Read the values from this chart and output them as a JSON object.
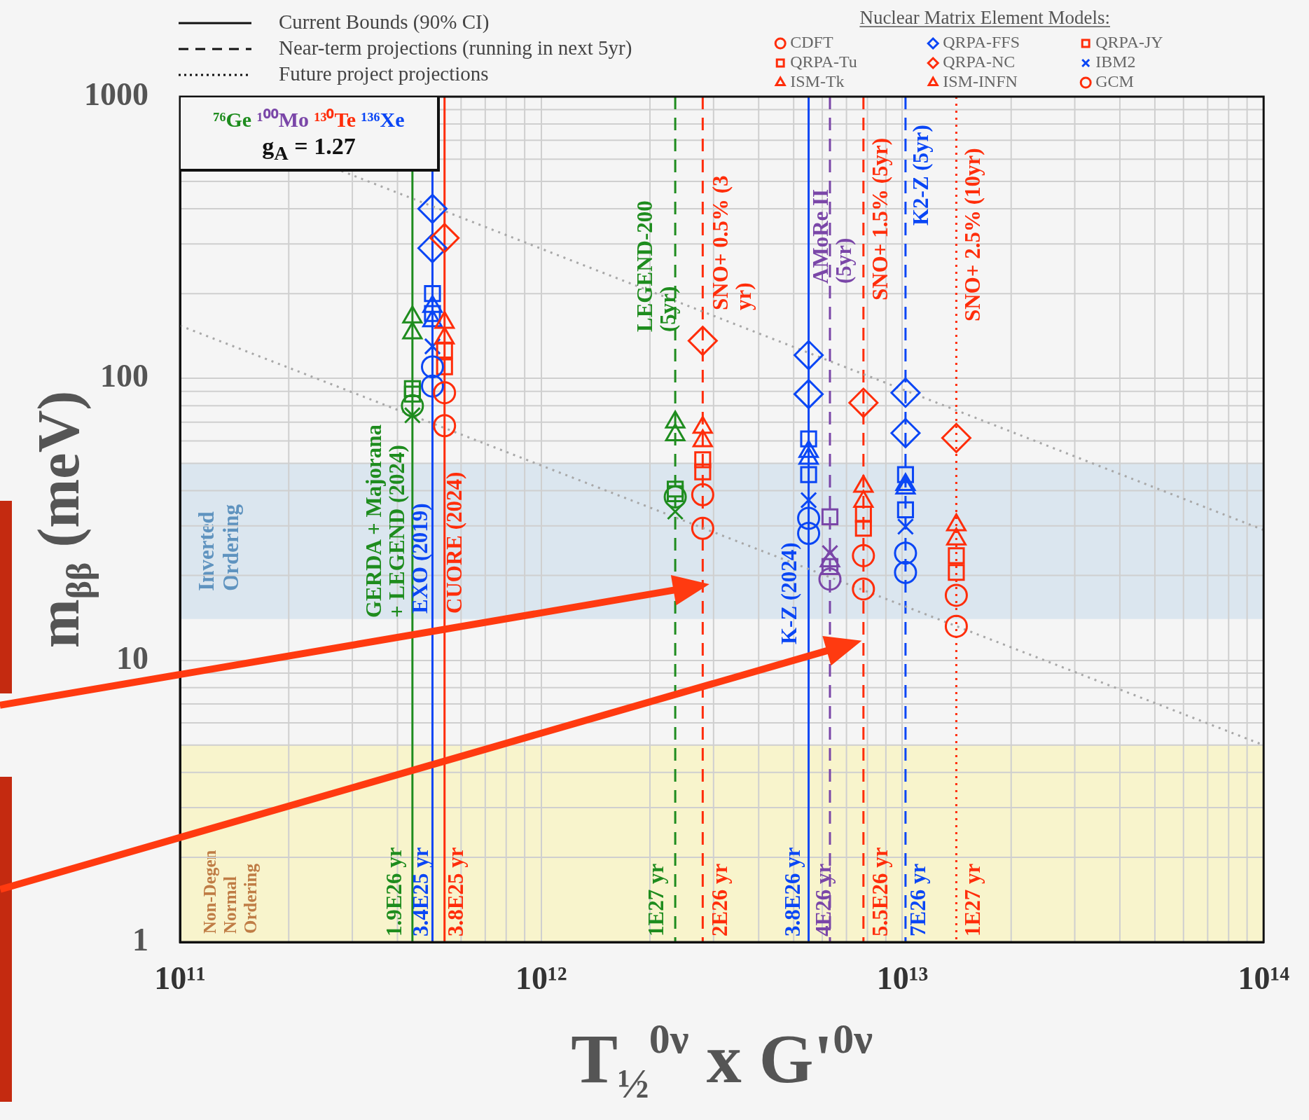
{
  "chart_data": {
    "type": "scatter",
    "xlabel": "T$_{½}$$^{0ν}$ x G'$^{0ν}$",
    "ylabel": "m$_{ββ}$ (meV)",
    "legend_title": "Nuclear Matrix Element Models:",
    "legend": "top right",
    "grid": true,
    "log": "xy",
    "xlim": [
      100000000000.0,
      100000000000000.0
    ],
    "xticks": [
      {
        "value": 100000000000.0,
        "label": "10¹¹"
      },
      {
        "value": 1000000000000.0,
        "label": "10¹²"
      },
      {
        "value": 10000000000000.0,
        "label": "10¹³"
      },
      {
        "value": 100000000000000.0,
        "label": "10¹⁴"
      }
    ],
    "ylim": [
      1,
      1000
    ],
    "yticks": [
      1,
      10,
      100,
      1000
    ],
    "x": [
      440000000000.0,
      500000000000.0,
      540000000000.0,
      2350000000000.0,
      2800000000000.0,
      5500000000000.0,
      6300000000000.0,
      7800000000000.0,
      10200000000000.0,
      14100000000000.0
    ],
    "series": [
      {
        "name": "CDFT",
        "marker": "circle",
        "values": [
          80,
          110,
          89,
          38,
          38.7,
          31.9,
          null,
          23.5,
          24,
          17
        ],
        "colors": [
          "#1e8c1e",
          "#0a46f5",
          "#ff2d0a",
          "#1e8c1e",
          "#ff2d0a",
          "#0a46f5",
          "#7a46a8",
          "#ff2d0a",
          "#0a46f5",
          "#ff2d0a"
        ]
      },
      {
        "name": "QRPA-Tu",
        "marker": "square",
        "values": [
          92,
          200,
          126,
          40.5,
          51.5,
          61,
          21.5,
          33,
          45.6,
          23.5
        ],
        "colors": [
          "#1e8c1e",
          "#0a46f5",
          "#ff2d0a",
          "#1e8c1e",
          "#ff2d0a",
          "#0a46f5",
          "#7a46a8",
          "#ff2d0a",
          "#0a46f5",
          "#ff2d0a"
        ]
      },
      {
        "name": "ISM-Tk",
        "marker": "triangle",
        "values": [
          165,
          180,
          158,
          70,
          67,
          55,
          null,
          41.4,
          40.8,
          30.2
        ],
        "colors": [
          "#1e8c1e",
          "#0a46f5",
          "#ff2d0a",
          "#1e8c1e",
          "#ff2d0a",
          "#0a46f5",
          "#7a46a8",
          "#ff2d0a",
          "#0a46f5",
          "#ff2d0a"
        ]
      },
      {
        "name": "QRPA-FFS",
        "marker": "diamond",
        "values": [
          null,
          400,
          null,
          null,
          null,
          121,
          null,
          null,
          89,
          null
        ],
        "colors": [
          "#1e8c1e",
          "#0a46f5",
          "#ff2d0a",
          "#1e8c1e",
          "#ff2d0a",
          "#0a46f5",
          "#7a46a8",
          "#ff2d0a",
          "#0a46f5",
          "#ff2d0a"
        ]
      },
      {
        "name": "QRPA-NC",
        "marker": "diamond",
        "values": [
          null,
          290,
          315,
          null,
          136,
          88,
          null,
          82,
          64,
          61.5
        ],
        "colors": [
          "#1e8c1e",
          "#0a46f5",
          "#ff2d0a",
          "#1e8c1e",
          "#ff2d0a",
          "#0a46f5",
          "#7a46a8",
          "#ff2d0a",
          "#0a46f5",
          "#ff2d0a"
        ]
      },
      {
        "name": "ISM-INFN",
        "marker": "triangle",
        "values": [
          145,
          160,
          139,
          63,
          60,
          52,
          22.5,
          36.6,
          42,
          26.9
        ],
        "colors": [
          "#1e8c1e",
          "#0a46f5",
          "#ff2d0a",
          "#1e8c1e",
          "#ff2d0a",
          "#0a46f5",
          "#7a46a8",
          "#ff2d0a",
          "#0a46f5",
          "#ff2d0a"
        ]
      },
      {
        "name": "QRPA-JY",
        "marker": "square",
        "values": [
          88,
          170,
          110,
          39,
          46.6,
          45.6,
          32.3,
          29.4,
          34.2,
          20.5
        ],
        "colors": [
          "#1e8c1e",
          "#0a46f5",
          "#ff2d0a",
          "#1e8c1e",
          "#ff2d0a",
          "#0a46f5",
          "#7a46a8",
          "#ff2d0a",
          "#0a46f5",
          "#ff2d0a"
        ]
      },
      {
        "name": "IBM2",
        "marker": "cross",
        "values": [
          74,
          130,
          null,
          33.7,
          null,
          37,
          24,
          null,
          29.8,
          null
        ],
        "colors": [
          "#1e8c1e",
          "#0a46f5",
          "#ff2d0a",
          "#1e8c1e",
          "#ff2d0a",
          "#0a46f5",
          "#7a46a8",
          "#ff2d0a",
          "#0a46f5",
          "#ff2d0a"
        ]
      },
      {
        "name": "GCM",
        "marker": "circle",
        "values": [
          null,
          94,
          68,
          null,
          29.4,
          28.2,
          19.4,
          17.9,
          20.5,
          13.2
        ],
        "colors": [
          "#1e8c1e",
          "#0a46f5",
          "#ff2d0a",
          "#1e8c1e",
          "#ff2d0a",
          "#0a46f5",
          "#7a46a8",
          "#ff2d0a",
          "#0a46f5",
          "#ff2d0a"
        ]
      },
      {
        "type": "line",
        "x": [
          280000000000.0,
          100000000000000.0
        ],
        "values": [
          545,
          29
        ],
        "color": "#a8a8a8",
        "line_style": "dotted",
        "marker": "none"
      },
      {
        "type": "line",
        "x": [
          100000000000.0,
          100000000000000.0
        ],
        "values": [
          154,
          5
        ],
        "color": "#a8a8a8",
        "line_style": "dotted",
        "marker": "none"
      }
    ],
    "ref_lines": [
      {
        "axis": "x",
        "value": 440000000000.0,
        "label": "1.9E26 yr",
        "color": "#1e8c1e",
        "line_style": "solid"
      },
      {
        "axis": "x",
        "value": 500000000000.0,
        "label": "3.4E25 yr",
        "color": "#0a46f5",
        "line_style": "solid"
      },
      {
        "axis": "x",
        "value": 540000000000.0,
        "label": "3.8E25 yr",
        "color": "#ff2d0a",
        "line_style": "solid"
      },
      {
        "axis": "x",
        "value": 2350000000000.0,
        "label": "1E27 yr",
        "color": "#1e8c1e",
        "line_style": "dashed"
      },
      {
        "axis": "x",
        "value": 2800000000000.0,
        "label": "2E26 yr",
        "color": "#ff2d0a",
        "line_style": "dashed"
      },
      {
        "axis": "x",
        "value": 5500000000000.0,
        "label": "3.8E26 yr",
        "color": "#0a46f5",
        "line_style": "solid"
      },
      {
        "axis": "x",
        "value": 6300000000000.0,
        "label": "4E26 yr",
        "color": "#7a46a8",
        "line_style": "dashed"
      },
      {
        "axis": "x",
        "value": 7800000000000.0,
        "label": "5.5E26 yr",
        "color": "#ff2d0a",
        "line_style": "dashed"
      },
      {
        "axis": "x",
        "value": 10200000000000.0,
        "label": "7E26 yr",
        "color": "#0a46f5",
        "line_style": "dashed"
      },
      {
        "axis": "x",
        "value": 14100000000000.0,
        "label": "1E27 yr",
        "color": "#ff2d0a",
        "line_style": "dotted"
      }
    ],
    "bands": [
      {
        "axis": "y",
        "from": 14,
        "to": 50,
        "label": "Inverted\nOrdering",
        "color": "#dbe6ef"
      },
      {
        "axis": "y",
        "from": 1,
        "to": 5,
        "label": "Non-Degen\nNormal\nOrdering",
        "color": "#f8f4cc"
      }
    ],
    "annotations": [
      "Current Bounds (90% CI)",
      "Near-term projections (running in next 5yr)",
      "Future project projections",
      "⁷⁶Ge",
      "¹⁰⁰Mo",
      "¹³⁰Te",
      "¹³⁶Xe",
      "g$_{A}$ = 1.27",
      "GERDA + Majorana\n+ LEGEND (2024)",
      "EXO (2019)",
      "CUORE (2024)",
      "LEGEND-200\n(5yr)",
      "SNO+ 0.5% (3\nyr)",
      "K-Z (2024)",
      "AMoRe II\n(5yr)",
      "SNO+ 1.5% (5yr)",
      "K2-Z (5yr)",
      "SNO+ 2.5% (10yr)"
    ]
  }
}
